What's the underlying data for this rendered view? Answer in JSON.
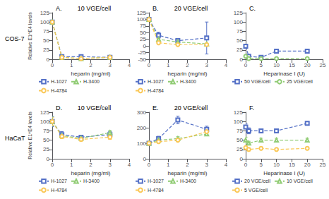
{
  "chart_data": [
    {
      "type": "line",
      "panel_label": "A.",
      "row_label": "COS-7",
      "title": "10 VGE/cell",
      "xlabel": "heparin (mg/ml)",
      "ylabel": "Relative E1^E4 levels",
      "xlim": [
        0,
        4
      ],
      "xticks": [
        0,
        1,
        2,
        3,
        4
      ],
      "ylim": [
        0,
        125
      ],
      "yticks": [
        0,
        25,
        50,
        75,
        100,
        125
      ],
      "grid": false,
      "legend": "bottom",
      "x": [
        0,
        0.5,
        1.5,
        3
      ],
      "series": [
        {
          "name": "H-1027",
          "marker": "square",
          "line_style": "dashed",
          "values": [
            100,
            7,
            7,
            5
          ],
          "yerr": [
            3,
            1.5,
            1,
            1
          ]
        },
        {
          "name": "H-3400",
          "marker": "triangle",
          "line_style": "dashed",
          "values": [
            100,
            5,
            2,
            5
          ],
          "yerr": [
            3,
            1,
            0.5,
            0.5
          ]
        },
        {
          "name": "H-4784",
          "marker": "circle",
          "line_style": "dashed",
          "values": [
            100,
            5,
            2,
            5
          ],
          "yerr": [
            3,
            1,
            0.5,
            0.5
          ]
        }
      ]
    },
    {
      "type": "line",
      "panel_label": "B.",
      "title": "20 VGE/cell",
      "xlabel": "heparin (mg/ml)",
      "xlim": [
        0,
        4
      ],
      "xticks": [
        0,
        1,
        2,
        3,
        4
      ],
      "ylim": [
        -50,
        125
      ],
      "yticks": [
        -50,
        -25,
        0,
        25,
        50,
        75,
        100,
        125
      ],
      "grid": false,
      "legend": "bottom",
      "x": [
        0,
        0.5,
        1.5,
        3
      ],
      "series": [
        {
          "name": "H-1027",
          "marker": "square",
          "line_style": "dashed",
          "values": [
            100,
            40,
            20,
            30
          ],
          "yerr": [
            3,
            12,
            5,
            60
          ]
        },
        {
          "name": "H-3400",
          "marker": "triangle",
          "line_style": "dashed",
          "values": [
            100,
            25,
            15,
            8
          ],
          "yerr": [
            3,
            5,
            3,
            2
          ]
        },
        {
          "name": "H-4784",
          "marker": "circle",
          "line_style": "dashed",
          "values": [
            100,
            12,
            5,
            5
          ],
          "yerr": [
            3,
            3,
            2,
            1
          ]
        }
      ]
    },
    {
      "type": "line",
      "panel_label": "C.",
      "xlabel": "Heparinase I (U)",
      "xlim": [
        0,
        25
      ],
      "xticks": [
        0,
        5,
        10,
        15,
        20,
        25
      ],
      "ylim": [
        0,
        125
      ],
      "yticks": [
        0,
        25,
        50,
        75,
        100,
        125
      ],
      "grid": false,
      "legend": "bottom",
      "x": [
        0,
        1,
        5,
        10,
        20
      ],
      "series": [
        {
          "name": "50 VGE/cell",
          "marker": "square",
          "line_style": "dashed",
          "values": [
            35,
            8,
            5,
            22,
            22
          ],
          "yerr": [
            5,
            2,
            1,
            3,
            3
          ]
        },
        {
          "name": "25 VGE/cell",
          "marker": "circle",
          "line_style": "dashed",
          "values": [
            8,
            2,
            2,
            2,
            2
          ],
          "yerr": [
            2,
            0.5,
            0.5,
            0.5,
            0.5
          ]
        }
      ]
    },
    {
      "type": "line",
      "panel_label": "D.",
      "row_label": "HaCaT",
      "title": "10 VGE/cell",
      "xlabel": "heparin (mg/ml)",
      "ylabel": "Relative E1^E4 levels",
      "xlim": [
        0,
        4
      ],
      "xticks": [
        0,
        1,
        2,
        3,
        4
      ],
      "ylim": [
        0,
        125
      ],
      "yticks": [
        0,
        25,
        50,
        75,
        100,
        125
      ],
      "grid": false,
      "legend": "bottom",
      "x": [
        0,
        0.5,
        1.5,
        3
      ],
      "series": [
        {
          "name": "H-1027",
          "marker": "square",
          "line_style": "dashed",
          "values": [
            100,
            65,
            58,
            65
          ],
          "yerr": [
            14,
            8,
            5,
            8
          ]
        },
        {
          "name": "H-3400",
          "marker": "triangle",
          "line_style": "dashed",
          "values": [
            100,
            62,
            55,
            70
          ],
          "yerr": [
            12,
            6,
            5,
            6
          ]
        },
        {
          "name": "H-4784",
          "marker": "circle",
          "line_style": "dashed",
          "values": [
            100,
            60,
            52,
            58
          ],
          "yerr": [
            10,
            6,
            5,
            6
          ]
        }
      ]
    },
    {
      "type": "line",
      "panel_label": "E.",
      "title": "20 VGE/cell",
      "xlabel": "heparin (mg/ml)",
      "xlim": [
        0,
        4
      ],
      "xticks": [
        0,
        1,
        2,
        3,
        4
      ],
      "ylim": [
        0,
        300
      ],
      "yticks": [
        0,
        100,
        200,
        300
      ],
      "grid": false,
      "legend": "bottom",
      "x": [
        0,
        0.5,
        1.5,
        3
      ],
      "series": [
        {
          "name": "H-1027",
          "marker": "square",
          "line_style": "dashed",
          "values": [
            100,
            130,
            250,
            190
          ],
          "yerr": [
            10,
            15,
            25,
            20
          ]
        },
        {
          "name": "H-3400",
          "marker": "triangle",
          "line_style": "dashed",
          "values": [
            100,
            120,
            130,
            160
          ],
          "yerr": [
            10,
            12,
            12,
            12
          ]
        },
        {
          "name": "H-4784",
          "marker": "circle",
          "line_style": "dashed",
          "values": [
            100,
            110,
            120,
            175
          ],
          "yerr": [
            10,
            10,
            10,
            10
          ]
        }
      ]
    },
    {
      "type": "line",
      "panel_label": "F.",
      "xlabel": "Heparinase I (U)",
      "xlim": [
        0,
        25
      ],
      "xticks": [
        0,
        5,
        10,
        15,
        20,
        25
      ],
      "ylim": [
        0,
        125
      ],
      "yticks": [
        0,
        25,
        50,
        75,
        100,
        125
      ],
      "grid": false,
      "legend": "bottom",
      "x": [
        0,
        1,
        5,
        10,
        20
      ],
      "series": [
        {
          "name": "20 VGE/cell",
          "marker": "square",
          "line_style": "dashed",
          "values": [
            85,
            75,
            75,
            75,
            95
          ],
          "yerr": [
            10,
            8,
            5,
            5,
            5
          ]
        },
        {
          "name": "10 VGE/cell",
          "marker": "triangle",
          "line_style": "dashed",
          "values": [
            50,
            42,
            50,
            50,
            50
          ],
          "yerr": [
            8,
            5,
            5,
            5,
            5
          ]
        },
        {
          "name": "5 VGE/cell",
          "marker": "circle",
          "line_style": "dashed",
          "values": [
            30,
            25,
            28,
            25,
            28
          ],
          "yerr": [
            5,
            4,
            4,
            4,
            4
          ]
        }
      ]
    }
  ]
}
